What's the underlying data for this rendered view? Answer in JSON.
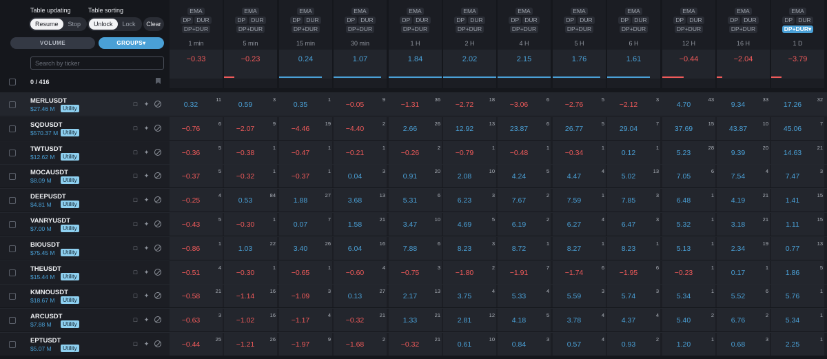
{
  "controls": {
    "table_updating_label": "Table updating",
    "resume_label": "Resume",
    "stop_label": "Stop",
    "table_sorting_label": "Table sorting",
    "unlock_label": "Unlock",
    "lock_label": "Lock",
    "clear_label": "Clear",
    "volume_tab": "VOLUME",
    "groups_tab": "GROUPS▾",
    "search_placeholder": "Search by ticker",
    "count": "0 / 416"
  },
  "colors": {
    "positive": "#4aa0d6",
    "negative": "#f05a5a",
    "accent": "#4aa0d6"
  },
  "columns": [
    {
      "ema": "EMA",
      "dp": "DP",
      "dur": "DUR",
      "dpdur": "DP+DUR",
      "tf": "1 min",
      "avg": "−0.33",
      "avg_sign": "neg",
      "bar_fraction": 0.0,
      "selected": false
    },
    {
      "ema": "EMA",
      "dp": "DP",
      "dur": "DUR",
      "dpdur": "DP+DUR",
      "tf": "5 min",
      "avg": "−0.23",
      "avg_sign": "neg",
      "bar_fraction": 0.2,
      "selected": false
    },
    {
      "ema": "EMA",
      "dp": "DP",
      "dur": "DUR",
      "dpdur": "DP+DUR",
      "tf": "15 min",
      "avg": "0.24",
      "avg_sign": "pos",
      "bar_fraction": 0.8,
      "selected": false
    },
    {
      "ema": "EMA",
      "dp": "DP",
      "dur": "DUR",
      "dpdur": "DP+DUR",
      "tf": "30 min",
      "avg": "1.07",
      "avg_sign": "pos",
      "bar_fraction": 0.9,
      "selected": false
    },
    {
      "ema": "EMA",
      "dp": "DP",
      "dur": "DUR",
      "dpdur": "DP+DUR",
      "tf": "1 H",
      "avg": "1.84",
      "avg_sign": "pos",
      "bar_fraction": 1.0,
      "selected": false
    },
    {
      "ema": "EMA",
      "dp": "DP",
      "dur": "DUR",
      "dpdur": "DP+DUR",
      "tf": "2 H",
      "avg": "2.02",
      "avg_sign": "pos",
      "bar_fraction": 1.0,
      "selected": false
    },
    {
      "ema": "EMA",
      "dp": "DP",
      "dur": "DUR",
      "dpdur": "DP+DUR",
      "tf": "4 H",
      "avg": "2.15",
      "avg_sign": "pos",
      "bar_fraction": 1.0,
      "selected": false
    },
    {
      "ema": "EMA",
      "dp": "DP",
      "dur": "DUR",
      "dpdur": "DP+DUR",
      "tf": "5 H",
      "avg": "1.76",
      "avg_sign": "pos",
      "bar_fraction": 0.9,
      "selected": false
    },
    {
      "ema": "EMA",
      "dp": "DP",
      "dur": "DUR",
      "dpdur": "DP+DUR",
      "tf": "6 H",
      "avg": "1.61",
      "avg_sign": "pos",
      "bar_fraction": 0.8,
      "selected": false
    },
    {
      "ema": "EMA",
      "dp": "DP",
      "dur": "DUR",
      "dpdur": "DP+DUR",
      "tf": "12 H",
      "avg": "−0.44",
      "avg_sign": "neg",
      "bar_fraction": 0.4,
      "selected": false
    },
    {
      "ema": "EMA",
      "dp": "DP",
      "dur": "DUR",
      "dpdur": "DP+DUR",
      "tf": "16 H",
      "avg": "−2.04",
      "avg_sign": "neg",
      "bar_fraction": 0.1,
      "selected": false
    },
    {
      "ema": "EMA",
      "dp": "DP",
      "dur": "DUR",
      "dpdur": "DP+DUR▾",
      "tf": "1 D",
      "avg": "−3.79",
      "avg_sign": "neg",
      "bar_fraction": 0.2,
      "selected": true
    }
  ],
  "rows": [
    {
      "ticker": "MERLUSDT",
      "volume": "$27.46 M",
      "group": "Utility",
      "cells": [
        [
          "0.32",
          "11"
        ],
        [
          "0.59",
          "3"
        ],
        [
          "0.35",
          "1"
        ],
        [
          "−0.05",
          "9"
        ],
        [
          "−1.31",
          "36"
        ],
        [
          "−2.72",
          "18"
        ],
        [
          "−3.06",
          "6"
        ],
        [
          "−2.76",
          "5"
        ],
        [
          "−2.12",
          "3"
        ],
        [
          "4.70",
          "43"
        ],
        [
          "9.34",
          "33"
        ],
        [
          "17.26",
          "32"
        ]
      ]
    },
    {
      "ticker": "SQDUSDT",
      "volume": "$570.37 M",
      "group": "Utility",
      "cells": [
        [
          "−0.76",
          "6"
        ],
        [
          "−2.07",
          "9"
        ],
        [
          "−4.46",
          "19"
        ],
        [
          "−4.40",
          "2"
        ],
        [
          "2.66",
          "26"
        ],
        [
          "12.92",
          "13"
        ],
        [
          "23.87",
          "6"
        ],
        [
          "26.77",
          "5"
        ],
        [
          "29.04",
          "7"
        ],
        [
          "37.69",
          "15"
        ],
        [
          "43.87",
          "10"
        ],
        [
          "45.06",
          "7"
        ]
      ]
    },
    {
      "ticker": "TWTUSDT",
      "volume": "$12.62 M",
      "group": "Utility",
      "cells": [
        [
          "−0.36",
          "5"
        ],
        [
          "−0.38",
          "1"
        ],
        [
          "−0.47",
          "1"
        ],
        [
          "−0.21",
          "1"
        ],
        [
          "−0.26",
          "2"
        ],
        [
          "−0.79",
          "1"
        ],
        [
          "−0.48",
          "1"
        ],
        [
          "−0.34",
          "1"
        ],
        [
          "0.12",
          "1"
        ],
        [
          "5.23",
          "28"
        ],
        [
          "9.39",
          "20"
        ],
        [
          "14.63",
          "21"
        ]
      ]
    },
    {
      "ticker": "MOCAUSDT",
      "volume": "$8.09 M",
      "group": "Utility",
      "cells": [
        [
          "−0.37",
          "5"
        ],
        [
          "−0.32",
          "1"
        ],
        [
          "−0.37",
          "1"
        ],
        [
          "0.04",
          "3"
        ],
        [
          "0.91",
          "20"
        ],
        [
          "2.08",
          "10"
        ],
        [
          "4.24",
          "5"
        ],
        [
          "4.47",
          "4"
        ],
        [
          "5.02",
          "13"
        ],
        [
          "7.05",
          "6"
        ],
        [
          "7.54",
          "4"
        ],
        [
          "7.47",
          "3"
        ]
      ]
    },
    {
      "ticker": "DEEPUSDT",
      "volume": "$4.81 M",
      "group": "Utility",
      "cells": [
        [
          "−0.25",
          "4"
        ],
        [
          "0.53",
          "84"
        ],
        [
          "1.88",
          "27"
        ],
        [
          "3.68",
          "13"
        ],
        [
          "5.31",
          "6"
        ],
        [
          "6.23",
          "3"
        ],
        [
          "7.67",
          "2"
        ],
        [
          "7.59",
          "1"
        ],
        [
          "7.85",
          "3"
        ],
        [
          "6.48",
          "1"
        ],
        [
          "4.19",
          "21"
        ],
        [
          "1.41",
          "15"
        ]
      ]
    },
    {
      "ticker": "VANRYUSDT",
      "volume": "$7.00 M",
      "group": "Utility",
      "cells": [
        [
          "−0.43",
          "5"
        ],
        [
          "−0.30",
          "1"
        ],
        [
          "0.07",
          "7"
        ],
        [
          "1.58",
          "21"
        ],
        [
          "3.47",
          "10"
        ],
        [
          "4.69",
          "5"
        ],
        [
          "6.19",
          "2"
        ],
        [
          "6.27",
          "4"
        ],
        [
          "6.47",
          "3"
        ],
        [
          "5.32",
          "1"
        ],
        [
          "3.18",
          "21"
        ],
        [
          "1.11",
          "15"
        ]
      ]
    },
    {
      "ticker": "BIOUSDT",
      "volume": "$75.45 M",
      "group": "Utility",
      "cells": [
        [
          "−0.86",
          "1"
        ],
        [
          "1.03",
          "22"
        ],
        [
          "3.40",
          "26"
        ],
        [
          "6.04",
          "16"
        ],
        [
          "7.88",
          "6"
        ],
        [
          "8.23",
          "3"
        ],
        [
          "8.72",
          "1"
        ],
        [
          "8.27",
          "1"
        ],
        [
          "8.23",
          "1"
        ],
        [
          "5.13",
          "1"
        ],
        [
          "2.34",
          "19"
        ],
        [
          "0.77",
          "13"
        ]
      ]
    },
    {
      "ticker": "THEUSDT",
      "volume": "$15.44 M",
      "group": "Utility",
      "cells": [
        [
          "−0.51",
          "4"
        ],
        [
          "−0.30",
          "1"
        ],
        [
          "−0.65",
          "1"
        ],
        [
          "−0.60",
          "4"
        ],
        [
          "−0.75",
          "3"
        ],
        [
          "−1.80",
          "2"
        ],
        [
          "−1.91",
          "7"
        ],
        [
          "−1.74",
          "6"
        ],
        [
          "−1.95",
          "6"
        ],
        [
          "−0.23",
          "1"
        ],
        [
          "0.17",
          "1"
        ],
        [
          "1.86",
          "5"
        ]
      ]
    },
    {
      "ticker": "KMNOUSDT",
      "volume": "$18.67 M",
      "group": "Utility",
      "cells": [
        [
          "−0.58",
          "21"
        ],
        [
          "−1.14",
          "16"
        ],
        [
          "−1.09",
          "3"
        ],
        [
          "0.13",
          "27"
        ],
        [
          "2.17",
          "13"
        ],
        [
          "3.75",
          "4"
        ],
        [
          "5.33",
          "4"
        ],
        [
          "5.59",
          "3"
        ],
        [
          "5.74",
          "3"
        ],
        [
          "5.34",
          "1"
        ],
        [
          "5.52",
          "6"
        ],
        [
          "5.76",
          "1"
        ]
      ]
    },
    {
      "ticker": "ARCUSDT",
      "volume": "$7.88 M",
      "group": "Utility",
      "cells": [
        [
          "−0.63",
          "3"
        ],
        [
          "−1.02",
          "16"
        ],
        [
          "−1.17",
          "4"
        ],
        [
          "−0.32",
          "21"
        ],
        [
          "1.33",
          "21"
        ],
        [
          "2.81",
          "12"
        ],
        [
          "4.18",
          "5"
        ],
        [
          "3.78",
          "4"
        ],
        [
          "4.37",
          "4"
        ],
        [
          "5.40",
          "2"
        ],
        [
          "6.76",
          "2"
        ],
        [
          "5.34",
          "1"
        ]
      ]
    },
    {
      "ticker": "EPTUSDT",
      "volume": "$5.07 M",
      "group": "Utility",
      "cells": [
        [
          "−0.44",
          "25"
        ],
        [
          "−1.21",
          "26"
        ],
        [
          "−1.97",
          "9"
        ],
        [
          "−1.68",
          "2"
        ],
        [
          "−0.32",
          "21"
        ],
        [
          "0.61",
          "10"
        ],
        [
          "0.84",
          "3"
        ],
        [
          "0.57",
          "4"
        ],
        [
          "0.93",
          "2"
        ],
        [
          "1.20",
          "1"
        ],
        [
          "0.68",
          "3"
        ],
        [
          "2.25",
          "1"
        ]
      ]
    }
  ]
}
